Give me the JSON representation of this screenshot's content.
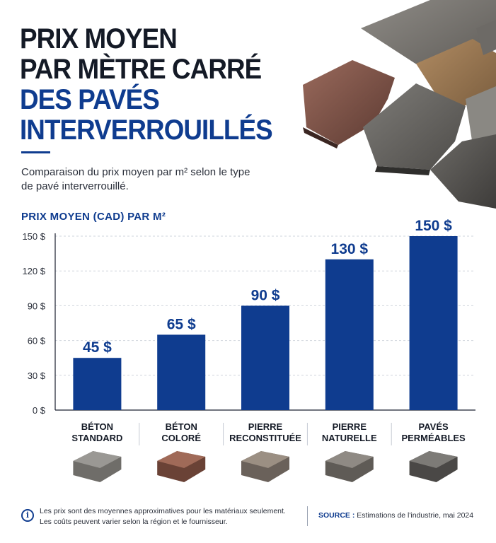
{
  "title": {
    "line1": "PRIX MOYEN",
    "line2": "PAR MÈTRE CARRÉ",
    "line3": "DES PAVÉS",
    "line4": "INTERVERROUILLÉS"
  },
  "subtitle": "Comparaison du prix moyen par m² selon le type de pavé interverrouillé.",
  "chart_heading": "PRIX MOYEN (CAD) PAR M²",
  "colors": {
    "accent": "#0f3c8f",
    "title_dark": "#141a26",
    "grid": "#cfd4dc"
  },
  "footer": {
    "note_line1": "Les prix sont des moyennes approximatives pour les matériaux seulement.",
    "note_line2": "Les coûts peuvent varier selon la région et le fournisseur.",
    "source_label": "SOURCE :",
    "source_text": "Estimations de l'industrie, mai 2024",
    "info_icon": "info-icon"
  },
  "chart_data": {
    "type": "bar",
    "categories": [
      "BÉTON STANDARD",
      "BÉTON COLORÉ",
      "PIERRE RECONSTITUÉE",
      "PIERRE NATURELLE",
      "PAVÉS PERMÉABLES"
    ],
    "category_lines": [
      [
        "BÉTON",
        "STANDARD"
      ],
      [
        "BÉTON",
        "COLORÉ"
      ],
      [
        "PIERRE",
        "RECONSTITUÉE"
      ],
      [
        "PIERRE",
        "NATURELLE"
      ],
      [
        "PAVÉS",
        "PERMÉABLES"
      ]
    ],
    "values": [
      45,
      65,
      90,
      130,
      150
    ],
    "value_labels": [
      "45 $",
      "65 $",
      "90 $",
      "130 $",
      "150 $"
    ],
    "y_ticks": [
      0,
      30,
      60,
      90,
      120,
      150
    ],
    "y_tick_labels": [
      "0 $",
      "30 $",
      "60 $",
      "90 $",
      "120 $",
      "150 $"
    ],
    "ylim": [
      0,
      150
    ],
    "grid": true,
    "xlabel": "",
    "ylabel": ""
  }
}
